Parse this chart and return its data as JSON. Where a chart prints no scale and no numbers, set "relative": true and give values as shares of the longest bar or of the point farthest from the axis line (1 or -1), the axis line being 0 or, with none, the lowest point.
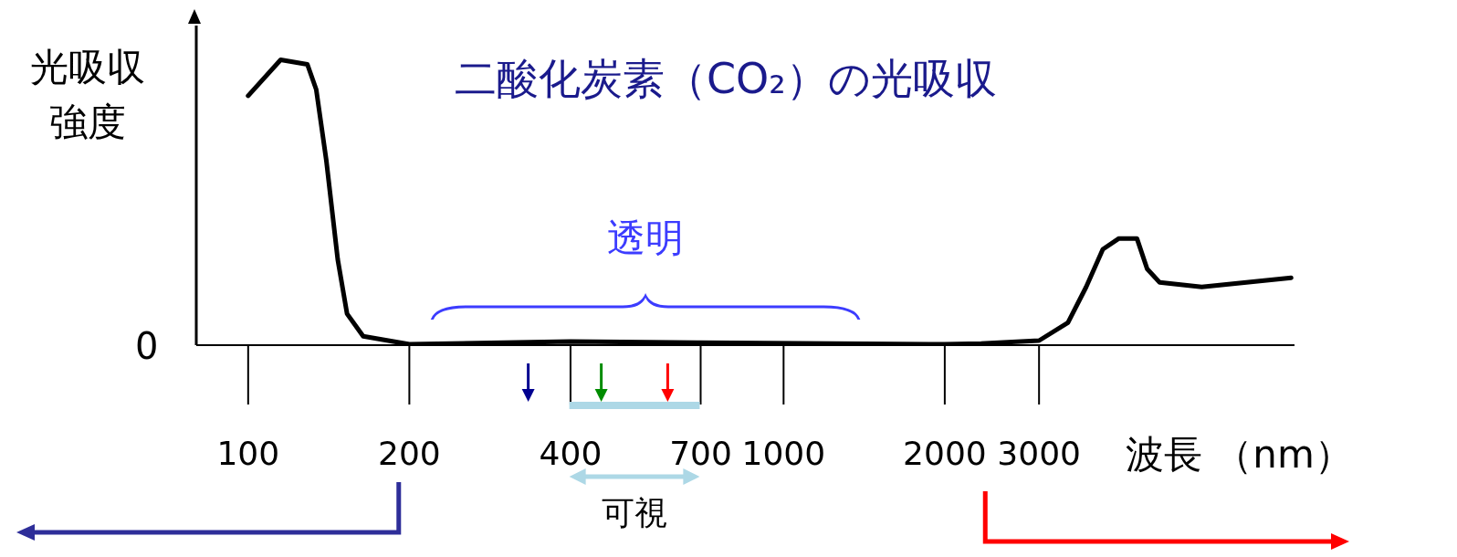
{
  "chart_data": {
    "type": "line",
    "title": "二酸化炭素（CO₂）の光吸収",
    "xlabel": "波長 （nm）",
    "ylabel": "光吸収強度",
    "relative": true,
    "log": "x",
    "color": "#000000",
    "x": [
      100,
      115,
      129,
      134,
      140,
      147,
      153,
      164,
      200,
      400,
      700,
      2000,
      2339,
      3000,
      3397,
      3674,
      3947,
      4230,
      4570,
      4776,
      5040,
      6040,
      8870
    ],
    "values": [
      0.874,
      1,
      0.984,
      0.896,
      0.645,
      0.3,
      0.11,
      0.031,
      0.003,
      0.013,
      0.009,
      0.003,
      0.006,
      0.016,
      0.079,
      0.204,
      0.336,
      0.374,
      0.374,
      0.267,
      0.22,
      0.204,
      0.236
    ],
    "xlim": [
      80,
      9000
    ],
    "xticks": [
      100,
      200,
      400,
      700,
      1000,
      2000,
      3000
    ],
    "annotations": [
      "0",
      "透明",
      "可視"
    ]
  }
}
